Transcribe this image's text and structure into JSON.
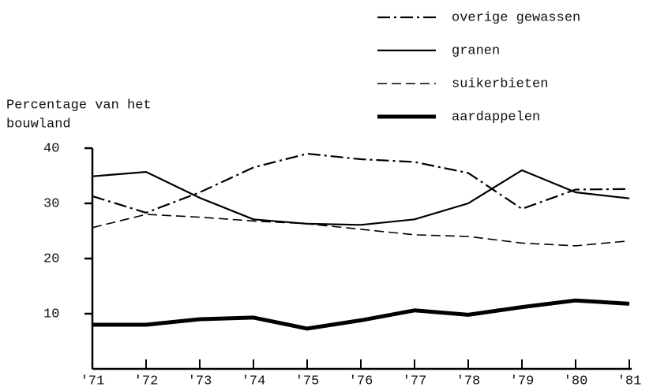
{
  "chart_data": {
    "type": "line",
    "ylabel": [
      "Percentage van het",
      "bouwland"
    ],
    "categories": [
      "'71",
      "'72",
      "'73",
      "'74",
      "'75",
      "'76",
      "'77",
      "'78",
      "'79",
      "'80",
      "'81"
    ],
    "series": [
      {
        "name": "overige gewassen",
        "color": "#000000",
        "style": "dashdot",
        "width": 2.2,
        "values": [
          31.3,
          28.3,
          32,
          36.5,
          39,
          38,
          37.5,
          35.5,
          29,
          32.5,
          32.6
        ]
      },
      {
        "name": "granen",
        "color": "#000000",
        "style": "solid",
        "width": 2.2,
        "values": [
          34.9,
          35.7,
          31,
          27.1,
          26.3,
          26.1,
          27.1,
          30,
          36,
          32,
          30.9
        ]
      },
      {
        "name": "suikerbieten",
        "color": "#000000",
        "style": "dashed",
        "width": 1.6,
        "values": [
          25.6,
          28,
          27.5,
          26.8,
          26.3,
          25.3,
          24.3,
          24,
          22.8,
          22.3,
          23.2
        ]
      },
      {
        "name": "aardappelen",
        "color": "#000000",
        "style": "solid",
        "width": 5,
        "values": [
          8,
          8,
          9,
          9.3,
          7.3,
          8.8,
          10.6,
          9.8,
          11.2,
          12.4,
          11.8
        ]
      }
    ],
    "ylim": [
      0,
      40
    ],
    "yticks": [
      10,
      20,
      30,
      40
    ],
    "legend": "top-right"
  }
}
